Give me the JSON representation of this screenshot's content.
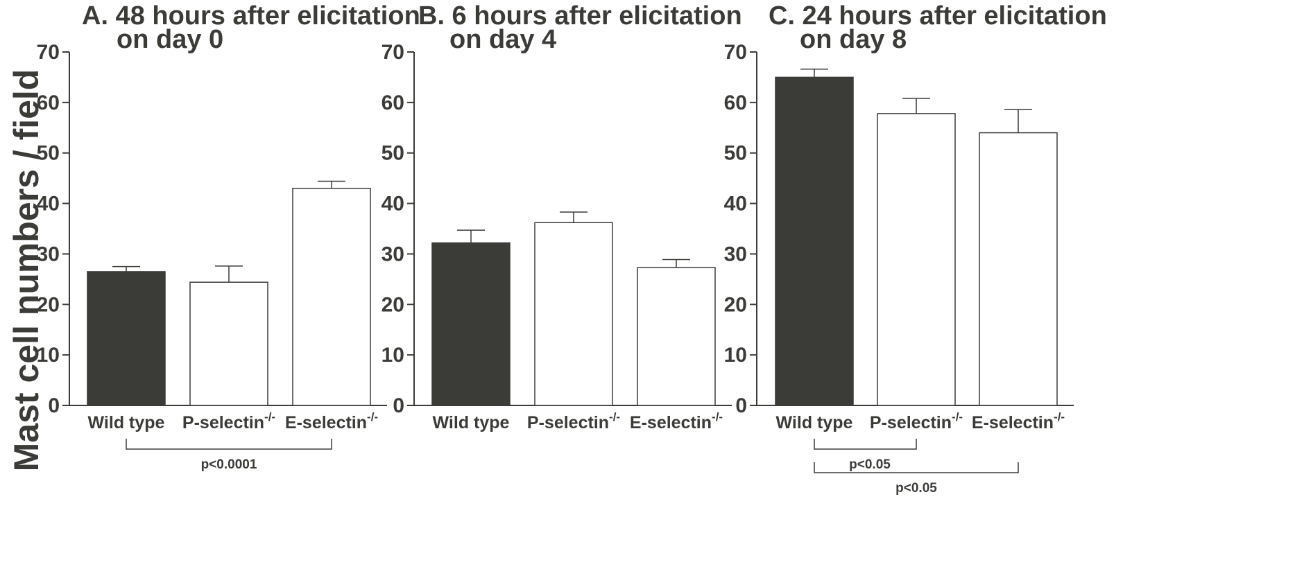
{
  "chart_data": {
    "type": "bar",
    "ylabel": "Mast cell numbers / field",
    "colors": {
      "wild_type": "#3b3c38",
      "knockout": "#ffffff",
      "axis": "#3b3c38"
    },
    "panels": [
      {
        "title_line1": "A. 48 hours after elicitation",
        "title_line2": "on day 0",
        "categories": [
          {
            "name": "Wild type",
            "sup": ""
          },
          {
            "name": "P-selectin",
            "sup": "-/-"
          },
          {
            "name": "E-selectin",
            "sup": "-/-"
          }
        ],
        "values": [
          26.5,
          24.4,
          43.0
        ],
        "errors": [
          1.0,
          3.2,
          1.4
        ],
        "ylim": [
          0,
          70
        ],
        "yticks": [
          "0",
          "10",
          "20",
          "30",
          "40",
          "50",
          "60",
          "70"
        ],
        "comparisons": [
          {
            "from": 0,
            "to": 2,
            "label": "p<0.0001"
          }
        ]
      },
      {
        "title_line1": "B. 6 hours after elicitation",
        "title_line2": "on day 4",
        "categories": [
          {
            "name": "Wild type",
            "sup": ""
          },
          {
            "name": "P-selectin",
            "sup": "-/-"
          },
          {
            "name": "E-selectin",
            "sup": "-/-"
          }
        ],
        "values": [
          32.2,
          36.2,
          27.3
        ],
        "errors": [
          2.5,
          2.1,
          1.6
        ],
        "ylim": [
          0,
          70
        ],
        "yticks": [
          "0",
          "10",
          "20",
          "30",
          "40",
          "50",
          "60",
          "70"
        ],
        "comparisons": []
      },
      {
        "title_line1": "C. 24 hours after elicitation",
        "title_line2": "on day 8",
        "categories": [
          {
            "name": "Wild type",
            "sup": ""
          },
          {
            "name": "P-selectin",
            "sup": "-/-"
          },
          {
            "name": "E-selectin",
            "sup": "-/-"
          }
        ],
        "values": [
          65.0,
          57.8,
          54.0
        ],
        "errors": [
          1.6,
          3.0,
          4.6
        ],
        "ylim": [
          0,
          70
        ],
        "yticks": [
          "0",
          "10",
          "20",
          "30",
          "40",
          "50",
          "60",
          "70"
        ],
        "comparisons": [
          {
            "from": 0,
            "to": 1,
            "label": "p<0.05"
          },
          {
            "from": 0,
            "to": 2,
            "label": "p<0.05"
          }
        ]
      }
    ]
  }
}
